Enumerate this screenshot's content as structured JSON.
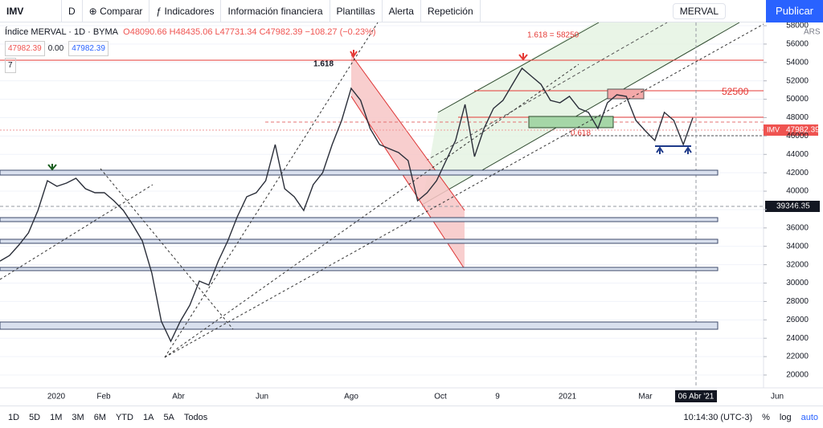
{
  "toolbar": {
    "symbol": "IMV",
    "interval": "D",
    "compare": "Comparar",
    "indicators": "Indicadores",
    "financials": "Información financiera",
    "templates": "Plantillas",
    "alert": "Alerta",
    "replay": "Repetición",
    "layout_name": "MERVAL",
    "publish": "Publicar"
  },
  "legend": {
    "title": "Índice MERVAL · 1D · BYMA",
    "ohlc": "O48090.66 H48435.06 L47731.34 C47982.39 −108.27 (−0.23%)",
    "bid": "47982.39",
    "spread": "0.00",
    "ask": "47982.39",
    "indicator_count": "7"
  },
  "bottom_bar": {
    "ranges": [
      "1D",
      "5D",
      "1M",
      "3M",
      "6M",
      "YTD",
      "1A",
      "5A",
      "Todos"
    ],
    "time": "10:14:30 (UTC-3)",
    "percent": "%",
    "log": "log",
    "auto": "auto"
  },
  "chart_data": {
    "type": "line",
    "currency": "ARS",
    "color": "#2a2e39",
    "values": [
      32400,
      33000,
      34150,
      35460,
      37900,
      41140,
      40530,
      40880,
      41400,
      40270,
      39830,
      39830,
      38960,
      37900,
      36340,
      34590,
      31090,
      25850,
      23670,
      25850,
      27600,
      30220,
      29780,
      32400,
      34590,
      37210,
      39390,
      39830,
      41140,
      45070,
      40270,
      39390,
      37900,
      40700,
      42010,
      45070,
      47690,
      51190,
      49880,
      46820,
      45070,
      44630,
      44200,
      43320,
      38960,
      39830,
      41140,
      43320,
      45510,
      49440,
      43760,
      46820,
      49000,
      49880,
      51620,
      53370,
      52500,
      51620,
      49880,
      49610,
      50310,
      49000,
      48570,
      46820,
      49610,
      50490,
      50310,
      47690,
      46560,
      45510,
      48570,
      47690,
      45070,
      47982.39
    ],
    "ylim": [
      20000,
      58000
    ],
    "yticks": [
      20000,
      22000,
      24000,
      26000,
      28000,
      30000,
      32000,
      34000,
      36000,
      38000,
      40000,
      42000,
      44000,
      46000,
      48000,
      50000,
      52000,
      54000,
      56000,
      58000
    ],
    "xtick_labels": [
      "2020",
      "Feb",
      "Abr",
      "Jun",
      "Ago",
      "Oct",
      "9",
      "2021",
      "Mar",
      "06 Abr '21",
      "Jun"
    ],
    "last_price_label": "IMV",
    "last_price": "47982.39",
    "crosshair_price": "39346.35",
    "annotations": [
      "1.618",
      "1.618 = 58250",
      "52500",
      "0.618"
    ],
    "grid": true
  }
}
